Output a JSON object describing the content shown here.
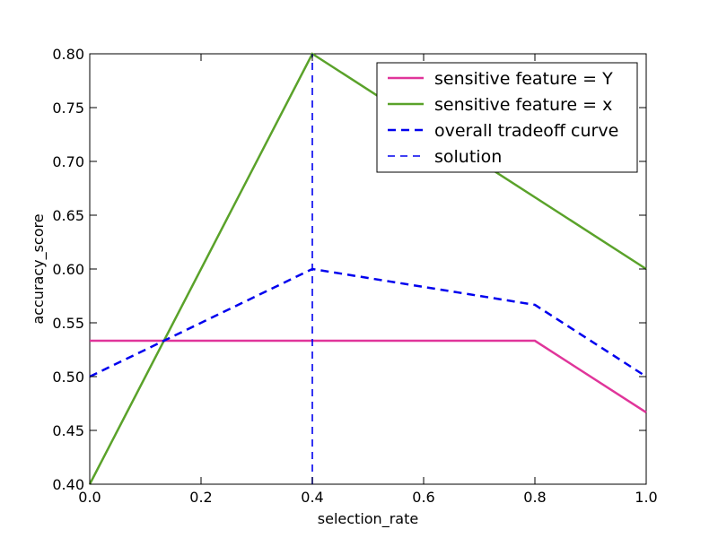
{
  "chart_data": {
    "type": "line",
    "title": "",
    "xlabel": "selection_rate",
    "ylabel": "accuracy_score",
    "xlim": [
      0.0,
      1.0
    ],
    "ylim": [
      0.4,
      0.8
    ],
    "xticks": [
      "0.0",
      "0.2",
      "0.4",
      "0.6",
      "0.8",
      "1.0"
    ],
    "yticks": [
      "0.40",
      "0.45",
      "0.50",
      "0.55",
      "0.60",
      "0.65",
      "0.70",
      "0.75",
      "0.80"
    ],
    "grid": false,
    "legend_position": "top-right",
    "series": [
      {
        "name": "sensitive feature = Y",
        "color": "#e0359a",
        "style": "solid",
        "x": [
          0.0,
          0.8,
          1.0
        ],
        "y": [
          0.5333,
          0.5333,
          0.4667
        ]
      },
      {
        "name": "sensitive feature = x",
        "color": "#5aa22a",
        "style": "solid",
        "x": [
          0.0,
          0.4,
          1.0
        ],
        "y": [
          0.4,
          0.8,
          0.6
        ]
      },
      {
        "name": "overall tradeoff curve",
        "color": "#0000ee",
        "style": "dashed",
        "x": [
          0.0,
          0.4,
          0.8,
          1.0
        ],
        "y": [
          0.5,
          0.6,
          0.5667,
          0.5
        ]
      },
      {
        "name": "solution",
        "color": "#0000ee",
        "style": "thin-dashed",
        "x": [
          0.4,
          0.4
        ],
        "y": [
          0.4,
          0.8
        ]
      }
    ]
  }
}
